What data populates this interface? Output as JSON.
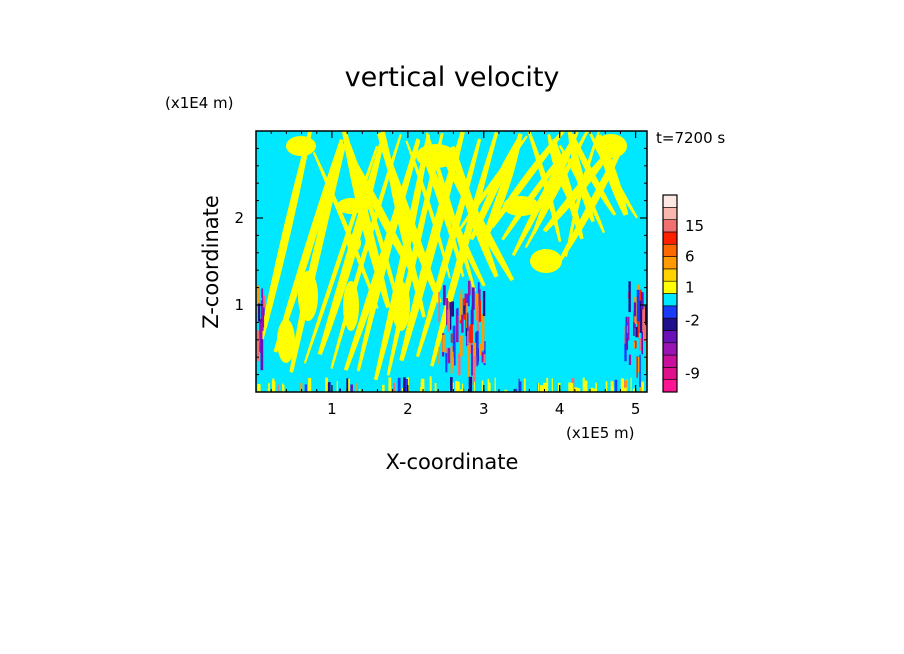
{
  "chart_data": {
    "type": "heatmap",
    "title": "vertical velocity",
    "xlabel": "X-coordinate",
    "ylabel": "Z-coordinate",
    "x_unit": "(x1E5 m)",
    "y_unit": "(x1E4 m)",
    "time_label": "t=7200 s",
    "xlim": [
      0,
      5.15
    ],
    "ylim": [
      0,
      3.0
    ],
    "x_ticks": [
      1,
      2,
      3,
      4,
      5
    ],
    "y_ticks": [
      1,
      2
    ],
    "grid": false,
    "legend": "right colorbar",
    "colorbar": {
      "levels": [
        {
          "color": "#ff1493"
        },
        {
          "color": "#e0108c"
        },
        {
          "color": "#c8109c"
        },
        {
          "color": "#9a14b4"
        },
        {
          "color": "#6a10b8"
        },
        {
          "color": "#20108c"
        },
        {
          "color": "#1a3cff"
        },
        {
          "color": "#00e8ff"
        },
        {
          "color": "#ffff00"
        },
        {
          "color": "#ffd200"
        },
        {
          "color": "#ff9a00"
        },
        {
          "color": "#ff6a00"
        },
        {
          "color": "#ff2000"
        },
        {
          "color": "#f07070"
        },
        {
          "color": "#f8b8b0"
        },
        {
          "color": "#fde8e4"
        }
      ],
      "tick_labels": [
        {
          "text": "-9",
          "at_level": 1.5
        },
        {
          "text": "-2",
          "at_level": 5.8
        },
        {
          "text": "1",
          "at_level": 8.5
        },
        {
          "text": "6",
          "at_level": 11
        },
        {
          "text": "15",
          "at_level": 13.5
        }
      ]
    },
    "field_summary": {
      "background_value_color": "#00e8ff",
      "positive_band_color": "#ffff00",
      "strong_activity_x_ranges": [
        [
          0.0,
          0.1
        ],
        [
          2.4,
          3.0
        ],
        [
          4.85,
          5.15
        ]
      ]
    }
  }
}
